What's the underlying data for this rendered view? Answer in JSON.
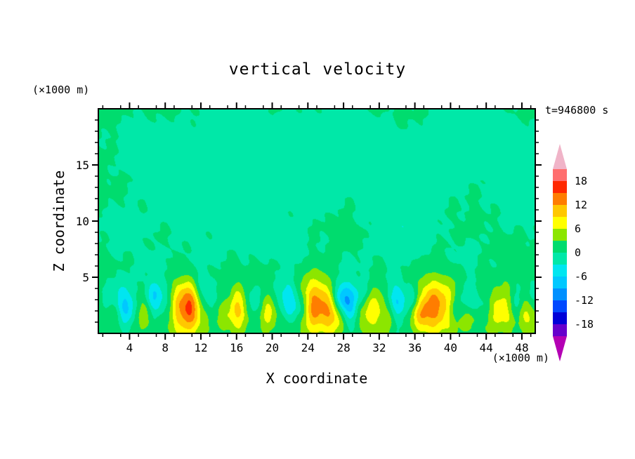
{
  "figure": {
    "title": "vertical velocity",
    "time_label": "t=946800 s",
    "x_axis": {
      "label": "X coordinate",
      "unit": "(×1000 m)",
      "major_ticks": [
        4,
        8,
        12,
        16,
        20,
        24,
        28,
        32,
        36,
        40,
        44,
        48
      ],
      "minor_tick_step": 2
    },
    "z_axis": {
      "label": "Z coordinate",
      "unit": "(×1000 m)",
      "major_ticks": [
        5,
        10,
        15
      ],
      "minor_tick_step": 1
    }
  },
  "chart_data": {
    "type": "heatmap",
    "title": "vertical velocity",
    "xlabel": "X coordinate (×1000 m)",
    "ylabel": "Z coordinate (×1000 m)",
    "time": "t=946800 s",
    "xlim": [
      0.5,
      49.5
    ],
    "zlim": [
      0,
      20
    ],
    "contour_levels": [
      -21,
      -18,
      -15,
      -12,
      -9,
      -6,
      -3,
      0,
      3,
      6,
      9,
      12,
      15,
      18,
      21
    ],
    "colorbar_labels": [
      18,
      12,
      6,
      0,
      -6,
      -12,
      -18
    ],
    "band_colors_low_to_high": [
      "#b400b4",
      "#6600cc",
      "#0000d8",
      "#0048ff",
      "#0090ff",
      "#00c8ff",
      "#00e6f0",
      "#00e8a8",
      "#00dc6e",
      "#8ce600",
      "#ffff00",
      "#ffc800",
      "#ff7d00",
      "#ff2800",
      "#ff6e6e",
      "#f0b4c8"
    ],
    "background_value": 1.1,
    "blob_format": "[x_km, z_km, sigma_x_km, sigma_z_km, peak_w]",
    "updrafts": [
      [
        10.2,
        2.4,
        1.6,
        1.7,
        16.5
      ],
      [
        16.4,
        2.2,
        1.0,
        1.4,
        9
      ],
      [
        19.9,
        1.8,
        0.8,
        1.1,
        6
      ],
      [
        24.9,
        2.5,
        1.9,
        1.8,
        11
      ],
      [
        27.0,
        1.8,
        0.9,
        1.2,
        6
      ],
      [
        31.2,
        2.0,
        1.1,
        1.4,
        7
      ],
      [
        38.8,
        2.4,
        2.0,
        1.7,
        12
      ],
      [
        45.6,
        2.1,
        1.2,
        1.4,
        8
      ],
      [
        48.6,
        1.9,
        0.9,
        1.2,
        6
      ],
      [
        5.4,
        2.0,
        0.9,
        1.2,
        5
      ],
      [
        36.6,
        1.6,
        0.7,
        1.0,
        5
      ],
      [
        14.8,
        1.6,
        0.6,
        0.9,
        4
      ],
      [
        33.4,
        1.5,
        0.6,
        0.9,
        4
      ],
      [
        42.3,
        1.6,
        0.6,
        0.9,
        4
      ],
      [
        2.0,
        1.7,
        0.6,
        0.9,
        3.5
      ]
    ],
    "downdrafts": [
      [
        7.9,
        2.6,
        1.1,
        1.3,
        -9.5
      ],
      [
        12.9,
        2.8,
        0.9,
        1.2,
        -6.5
      ],
      [
        17.9,
        2.7,
        0.8,
        1.1,
        -5.5
      ],
      [
        21.8,
        2.9,
        1.0,
        1.3,
        -8.5
      ],
      [
        27.7,
        3.1,
        0.8,
        1.0,
        -11
      ],
      [
        28.9,
        2.3,
        1.0,
        1.2,
        -5.5
      ],
      [
        34.2,
        2.7,
        1.1,
        1.3,
        -6.5
      ],
      [
        41.6,
        2.8,
        1.0,
        1.2,
        -6.5
      ],
      [
        43.4,
        2.4,
        0.8,
        1.0,
        -5
      ],
      [
        48.9,
        3.0,
        0.8,
        1.1,
        -5.5
      ],
      [
        2.6,
        2.8,
        1.0,
        1.3,
        -6
      ],
      [
        6.5,
        3.4,
        0.7,
        0.9,
        -4.5
      ],
      [
        23.3,
        2.2,
        0.7,
        0.9,
        -4.5
      ],
      [
        30.0,
        3.6,
        0.6,
        0.8,
        -4
      ],
      [
        36.0,
        3.0,
        0.6,
        0.8,
        -4
      ],
      [
        40.3,
        2.0,
        0.6,
        0.8,
        -4
      ],
      [
        47.2,
        2.4,
        0.6,
        0.8,
        -4
      ],
      [
        11.8,
        4.2,
        0.7,
        0.9,
        -4
      ],
      [
        4.2,
        2.2,
        0.7,
        1.0,
        -4.5
      ]
    ],
    "weak_negative_patches": [
      [
        6,
        16.5,
        3.5,
        2.5,
        -2.2
      ],
      [
        13,
        14.5,
        3,
        2.5,
        -2.0
      ],
      [
        20.5,
        17,
        4,
        2.2,
        -2.2
      ],
      [
        9.5,
        11.5,
        2.5,
        2,
        -1.9
      ],
      [
        16.5,
        9.5,
        2.5,
        2,
        -1.9
      ],
      [
        25,
        13,
        3,
        2.3,
        -2.0
      ],
      [
        31.5,
        16,
        3,
        2.2,
        -2.1
      ],
      [
        38,
        13.5,
        3,
        2.4,
        -2.0
      ],
      [
        44.5,
        17,
        3,
        2.2,
        -2.1
      ],
      [
        47.5,
        11,
        2.5,
        2,
        -1.9
      ],
      [
        3,
        9,
        2.5,
        2,
        -1.9
      ],
      [
        22,
        7.5,
        2.5,
        1.8,
        -1.8
      ],
      [
        29,
        5.5,
        2,
        1.5,
        -1.7
      ],
      [
        35,
        8.5,
        2.5,
        2,
        -1.9
      ],
      [
        42,
        6.5,
        2,
        1.6,
        -1.8
      ],
      [
        12,
        6.5,
        2,
        1.6,
        -1.7
      ],
      [
        18.5,
        13,
        2.5,
        2,
        -1.9
      ],
      [
        27.5,
        18,
        3,
        2,
        -2.0
      ],
      [
        33.5,
        10.5,
        2.5,
        2,
        -1.9
      ],
      [
        40.5,
        18.5,
        3,
        2,
        -2.0
      ],
      [
        48.5,
        15.5,
        2.5,
        2,
        -2.0
      ],
      [
        7.5,
        5.5,
        2,
        1.4,
        -1.6
      ],
      [
        15,
        18.5,
        2.5,
        1.8,
        -2.0
      ]
    ],
    "noise": {
      "waves": [
        [
          0.45,
          0.8,
          1.1,
          0.5,
          1.9,
          -0.7,
          2.2
        ],
        [
          0.35,
          2.7,
          1.8,
          4.0,
          0.5,
          2.6,
          1.0
        ]
      ],
      "surface": {
        "zc": 2.3,
        "zs": 1.8,
        "waves": [
          [
            1.1,
            1.05,
            0.3
          ],
          [
            0.8,
            2.3,
            2.1
          ],
          [
            0.6,
            3.7,
            5.0
          ]
        ]
      }
    }
  },
  "colors": {
    "frame": "#000000",
    "text": "#000000",
    "background": "#ffffff"
  }
}
